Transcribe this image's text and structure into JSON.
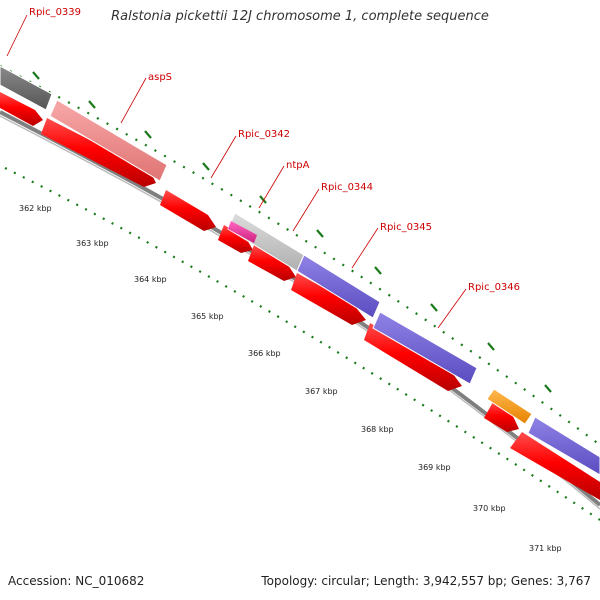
{
  "title": "Ralstonia pickettii 12J chromosome 1, complete sequence",
  "footer": {
    "accession": "Accession: NC_010682",
    "summary": "Topology: circular; Length: 3,942,557 bp; Genes: 3,767"
  },
  "colors": {
    "backbone": "#8c8c8c",
    "tick": "#1a7a1a",
    "cds_red": "#ff0000",
    "dark_gray": "#6e6e6e",
    "salmon": "#f08c8c",
    "light_gray": "#c8c8c8",
    "magenta": "#ee3399",
    "purple": "#7060d0",
    "orange": "#ff9900",
    "label": "#cc0000"
  },
  "gene_labels": [
    "Rpic_0339",
    "aspS",
    "Rpic_0342",
    "ntpA",
    "Rpic_0344",
    "Rpic_0345",
    "Rpic_0346"
  ],
  "kbp_labels": [
    "362 kbp",
    "363 kbp",
    "364 kbp",
    "365 kbp",
    "366 kbp",
    "367 kbp",
    "368 kbp",
    "369 kbp",
    "370 kbp",
    "371 kbp"
  ]
}
